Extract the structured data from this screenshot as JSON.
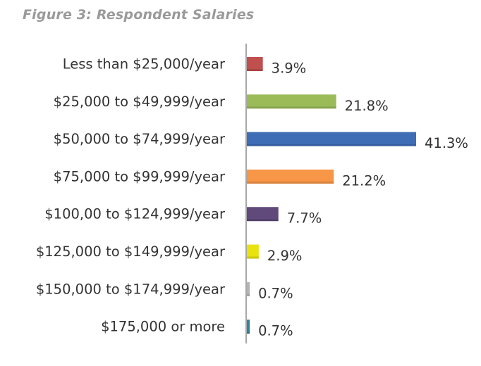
{
  "figure_title": "Figure 3: Respondent Salaries",
  "chart_data": {
    "type": "bar",
    "orientation": "horizontal",
    "title": "Figure 3: Respondent Salaries",
    "categories": [
      "Less than $25,000/year",
      "$25,000 to $49,999/year",
      "$50,000 to $74,999/year",
      "$75,000 to $99,999/year",
      "$100,00 to $124,999/year",
      "$125,000 to $149,999/year",
      "$150,000 to $174,999/year",
      "$175,000 or more"
    ],
    "values": [
      3.9,
      21.8,
      41.3,
      21.2,
      7.7,
      2.9,
      0.7,
      0.7
    ],
    "value_labels": [
      "3.9%",
      "21.8%",
      "41.3%",
      "21.2%",
      "7.7%",
      "2.9%",
      "0.7%",
      "0.7%"
    ],
    "colors": [
      "#c0504d",
      "#9bbb59",
      "#3e6db5",
      "#f79646",
      "#604a7b",
      "#e8e20f",
      "#b3b3b3",
      "#31849b"
    ],
    "xlim": [
      0,
      41.3
    ],
    "grid": false,
    "legend": "none"
  }
}
